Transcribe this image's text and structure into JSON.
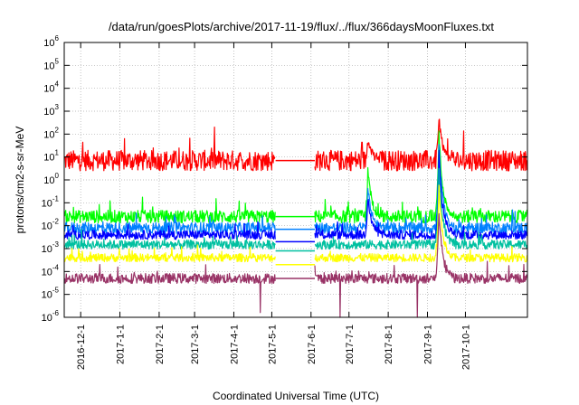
{
  "chart_data": {
    "type": "line",
    "title": "/data/run/goesPlots/archive/2017-11-19/flux/../flux/366daysMoonFluxes.txt",
    "xlabel": "Coordinated Universal Time (UTC)",
    "ylabel": "protons/cm2-s-sr-MeV",
    "yscale": "log",
    "ylim_exponent": [
      -6,
      6
    ],
    "ytick_base": "10",
    "yticks_exponent": [
      "-6",
      "-5",
      "-4",
      "-3",
      "-2",
      "-1",
      "0",
      "1",
      "2",
      "3",
      "4",
      "5",
      "6"
    ],
    "xlim": [
      "2016-11-18",
      "2017-11-19"
    ],
    "xticks": [
      {
        "label": "2016-12-1",
        "date": "2016-12-01"
      },
      {
        "label": "2017-1-1",
        "date": "2017-01-01"
      },
      {
        "label": "2017-2-1",
        "date": "2017-02-01"
      },
      {
        "label": "2017-3-1",
        "date": "2017-03-01"
      },
      {
        "label": "2017-4-1",
        "date": "2017-04-01"
      },
      {
        "label": "2017-5-1",
        "date": "2017-05-01"
      },
      {
        "label": "2017-6-1",
        "date": "2017-06-01"
      },
      {
        "label": "2017-7-1",
        "date": "2017-07-01"
      },
      {
        "label": "2017-8-1",
        "date": "2017-08-01"
      },
      {
        "label": "2017-9-1",
        "date": "2017-09-01"
      },
      {
        "label": "2017-10-1",
        "date": "2017-10-01"
      }
    ],
    "grid": true,
    "data_gap": {
      "start": "2017-05-04",
      "end": "2017-06-04"
    },
    "series": [
      {
        "color": "#ff0000",
        "base": 7,
        "noise_dex": 0.45,
        "gap_value": 7,
        "events": [
          {
            "date": "2017-07-16",
            "peak": 60
          },
          {
            "date": "2017-09-10",
            "peak": 600
          }
        ]
      },
      {
        "color": "#00ff00",
        "base": 0.025,
        "noise_dex": 0.28,
        "gap_value": 0.025,
        "events": [
          {
            "date": "2017-07-16",
            "peak": 3
          },
          {
            "date": "2017-09-10",
            "peak": 150
          }
        ]
      },
      {
        "color": "#0080ff",
        "base": 0.008,
        "noise_dex": 0.25,
        "gap_value": 0.007,
        "events": [
          {
            "date": "2017-07-16",
            "peak": 0.5
          },
          {
            "date": "2017-09-10",
            "peak": 40
          }
        ]
      },
      {
        "color": "#0000ff",
        "base": 0.004,
        "noise_dex": 0.2,
        "gap_value": 0.002,
        "events": [
          {
            "date": "2017-07-16",
            "peak": 0.2
          },
          {
            "date": "2017-09-10",
            "peak": 15
          }
        ]
      },
      {
        "color": "#00c0a0",
        "base": 0.0015,
        "noise_dex": 0.2,
        "gap_value": 0.0008,
        "events": [
          {
            "date": "2017-09-10",
            "peak": 3
          }
        ]
      },
      {
        "color": "#ffff00",
        "base": 0.0004,
        "noise_dex": 0.18,
        "gap_value": 0.0002,
        "events": [
          {
            "date": "2017-09-10",
            "peak": 0.5
          }
        ]
      },
      {
        "color": "#993366",
        "base": 5e-05,
        "noise_dex": 0.22,
        "gap_value": 5e-05,
        "events": [
          {
            "date": "2017-09-10",
            "peak": 0.05
          }
        ],
        "dips": [
          {
            "date": "2017-04-22",
            "value": 1.6e-06
          },
          {
            "date": "2017-06-24",
            "value": 1e-06
          },
          {
            "date": "2017-08-24",
            "value": 1e-06
          }
        ]
      }
    ]
  }
}
